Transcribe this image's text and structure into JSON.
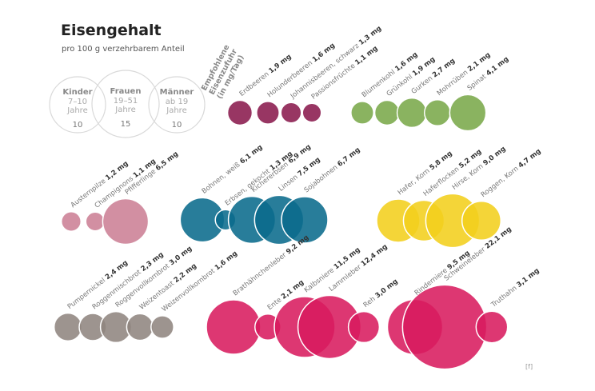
{
  "header": {
    "title": "Eisengehalt",
    "subtitle": "pro 100 g verzehrbarem Anteil",
    "credit": "[f]"
  },
  "reference": {
    "label_lines": [
      "Empfohlene",
      "Eisenzufuhr",
      "(in mg/Tag)"
    ],
    "groups": [
      {
        "name": "Kinder",
        "age_lines": [
          "7–10",
          "Jahre"
        ],
        "value": 10
      },
      {
        "name": "Frauen",
        "age_lines": [
          "19–51",
          "Jahre"
        ],
        "value": 15
      },
      {
        "name": "Männer",
        "age_lines": [
          "ab 19",
          "Jahre"
        ],
        "value": 10
      }
    ]
  },
  "chart_data": {
    "type": "bubble",
    "title": "Eisengehalt",
    "subtitle": "pro 100 g verzehrbarem Anteil",
    "unit": "mg",
    "groups": [
      {
        "id": "beeren",
        "color": "#8a1a4d",
        "items": [
          {
            "name": "Erdbeeren",
            "value": 1.9,
            "value_label": "1,9 mg"
          },
          {
            "name": "Holunderbeeren",
            "value": 1.6,
            "value_label": "1,6 mg"
          },
          {
            "name": "Johannisbeeren, schwarz",
            "value": 1.3,
            "value_label": "1,3 mg"
          },
          {
            "name": "Passionsfrüchte",
            "value": 1.1,
            "value_label": "1,1 mg"
          }
        ]
      },
      {
        "id": "gemuese",
        "color": "#7aa84a",
        "items": [
          {
            "name": "Blumenkohl",
            "value": 1.6,
            "value_label": "1,6 mg"
          },
          {
            "name": "Grünkohl",
            "value": 1.9,
            "value_label": "1,9 mg"
          },
          {
            "name": "Gurken",
            "value": 2.7,
            "value_label": "2,7 mg"
          },
          {
            "name": "Mohrrüben",
            "value": 2.1,
            "value_label": "2,1 mg"
          },
          {
            "name": "Spinat",
            "value": 4.1,
            "value_label": "4,1 mg"
          }
        ]
      },
      {
        "id": "pilze",
        "color": "#cc7f95",
        "items": [
          {
            "name": "Austernpilze",
            "value": 1.2,
            "value_label": "1,2 mg"
          },
          {
            "name": "Champignons",
            "value": 1.1,
            "value_label": "1,1 mg"
          },
          {
            "name": "Pfifferlinge",
            "value": 6.5,
            "value_label": "6,5 mg"
          }
        ]
      },
      {
        "id": "huelsenfruechte",
        "color": "#0a6b8c",
        "items": [
          {
            "name": "Bohnen, weiß",
            "value": 6.1,
            "value_label": "6,1 mg"
          },
          {
            "name": "Erbsen, gekocht",
            "value": 1.3,
            "value_label": "1,3 mg"
          },
          {
            "name": "Kichererbsen",
            "value": 6.9,
            "value_label": "6,9 mg"
          },
          {
            "name": "Linsen",
            "value": 7.5,
            "value_label": "7,5 mg"
          },
          {
            "name": "Sojabohnen",
            "value": 6.7,
            "value_label": "6,7 mg"
          }
        ]
      },
      {
        "id": "getreide",
        "color": "#f2cf1d",
        "items": [
          {
            "name": "Hafer, Korn",
            "value": 5.8,
            "value_label": "5,8 mg"
          },
          {
            "name": "Haferflocken",
            "value": 5.2,
            "value_label": "5,2 mg"
          },
          {
            "name": "Hirse, Korn",
            "value": 9.0,
            "value_label": "9,0 mg"
          },
          {
            "name": "Roggen, Korn",
            "value": 4.7,
            "value_label": "4,7 mg"
          }
        ]
      },
      {
        "id": "brot",
        "color": "#908580",
        "items": [
          {
            "name": "Pumpernickel",
            "value": 2.4,
            "value_label": "2,4 mg"
          },
          {
            "name": "Roggenmischbrot",
            "value": 2.3,
            "value_label": "2,3 mg"
          },
          {
            "name": "Roggenvollkornbrot",
            "value": 3.0,
            "value_label": "3,0 mg"
          },
          {
            "name": "Weizentoast",
            "value": 2.2,
            "value_label": "2,2 mg"
          },
          {
            "name": "Weizenvollkornbrot",
            "value": 1.6,
            "value_label": "1,6 mg"
          }
        ]
      },
      {
        "id": "fleisch",
        "color": "#d81b5e",
        "items": [
          {
            "name": "Brathähnchenleber",
            "value": 9.2,
            "value_label": "9,2 mg"
          },
          {
            "name": "Ente",
            "value": 2.1,
            "value_label": "2,1 mg"
          },
          {
            "name": "Kalbsniere",
            "value": 11.5,
            "value_label": "11,5 mg"
          },
          {
            "name": "Lammleber",
            "value": 12.4,
            "value_label": "12,4 mg"
          },
          {
            "name": "Reh",
            "value": 3.0,
            "value_label": "3,0 mg"
          },
          {
            "name": "Rinderniere",
            "value": 9.5,
            "value_label": "9,5 mg"
          },
          {
            "name": "Schweineleber",
            "value": 22.1,
            "value_label": "22,1 mg"
          },
          {
            "name": "Truthahn",
            "value": 3.1,
            "value_label": "3,1 mg"
          }
        ]
      }
    ]
  }
}
